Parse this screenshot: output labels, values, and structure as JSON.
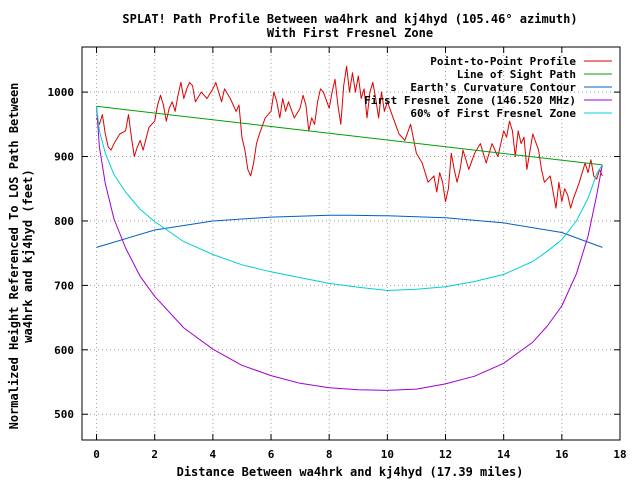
{
  "chart_data": {
    "type": "line",
    "title": "SPLAT! Path Profile Between wa4hrk and kj4hyd (105.46° azimuth)",
    "subtitle": "With First Fresnel Zone",
    "xlabel": "Distance Between wa4hrk and kj4hyd (17.39 miles)",
    "ylabel_line1": "Normalized Height Referenced To LOS Path Between",
    "ylabel_line2": "wa4hrk and kj4hyd (feet)",
    "xlim": [
      -0.5,
      18
    ],
    "ylim": [
      460,
      1070
    ],
    "xticks": [
      0,
      2,
      4,
      6,
      8,
      10,
      12,
      14,
      16,
      18
    ],
    "xtick_labels": [
      "0",
      "2",
      "4",
      "6",
      "8",
      "10",
      "12",
      "14",
      "16",
      "18"
    ],
    "yticks": [
      500,
      600,
      700,
      800,
      900,
      1000
    ],
    "ytick_labels": [
      "500",
      "600",
      "700",
      "800",
      "900",
      "1000"
    ],
    "grid": true,
    "legend_position": "top-right",
    "series": [
      {
        "name": "Point-to-Point Profile",
        "color": "#e00000",
        "x": [
          0,
          0.1,
          0.2,
          0.3,
          0.4,
          0.5,
          0.6,
          0.8,
          1.0,
          1.1,
          1.2,
          1.3,
          1.4,
          1.5,
          1.6,
          1.8,
          2.0,
          2.1,
          2.2,
          2.3,
          2.4,
          2.5,
          2.6,
          2.7,
          2.8,
          2.9,
          3.0,
          3.1,
          3.2,
          3.3,
          3.4,
          3.6,
          3.8,
          4.0,
          4.1,
          4.2,
          4.3,
          4.4,
          4.6,
          4.8,
          4.9,
          5.0,
          5.1,
          5.2,
          5.3,
          5.4,
          5.5,
          5.6,
          5.8,
          6.0,
          6.1,
          6.2,
          6.3,
          6.4,
          6.5,
          6.6,
          6.8,
          7.0,
          7.1,
          7.2,
          7.3,
          7.4,
          7.5,
          7.6,
          7.7,
          7.8,
          8.0,
          8.1,
          8.2,
          8.3,
          8.4,
          8.5,
          8.6,
          8.7,
          8.8,
          8.9,
          9.0,
          9.1,
          9.2,
          9.3,
          9.4,
          9.5,
          9.6,
          9.7,
          9.8,
          9.9,
          10.0,
          10.2,
          10.4,
          10.6,
          10.8,
          11.0,
          11.2,
          11.4,
          11.6,
          11.7,
          11.8,
          11.9,
          12.0,
          12.1,
          12.2,
          12.3,
          12.4,
          12.5,
          12.6,
          12.8,
          13.0,
          13.2,
          13.4,
          13.6,
          13.8,
          14.0,
          14.1,
          14.2,
          14.3,
          14.4,
          14.5,
          14.6,
          14.7,
          14.8,
          15.0,
          15.2,
          15.3,
          15.4,
          15.6,
          15.8,
          15.9,
          16.0,
          16.1,
          16.2,
          16.3,
          16.4,
          16.6,
          16.8,
          16.9,
          17.0,
          17.1,
          17.2,
          17.3,
          17.39
        ],
        "y": [
          960,
          950,
          965,
          935,
          915,
          910,
          920,
          935,
          940,
          965,
          930,
          900,
          915,
          925,
          910,
          945,
          955,
          980,
          995,
          980,
          955,
          975,
          985,
          970,
          995,
          1015,
          990,
          1005,
          1015,
          1010,
          985,
          1000,
          990,
          1005,
          1015,
          1000,
          985,
          1005,
          990,
          970,
          980,
          930,
          910,
          880,
          870,
          890,
          920,
          935,
          960,
          970,
          1000,
          985,
          960,
          990,
          970,
          985,
          960,
          975,
          995,
          980,
          940,
          960,
          950,
          985,
          1005,
          1000,
          975,
          1000,
          1020,
          980,
          950,
          1010,
          1040,
          1000,
          1030,
          1000,
          1025,
          990,
          1005,
          960,
          1000,
          1015,
          990,
          960,
          1000,
          970,
          985,
          960,
          935,
          925,
          950,
          905,
          890,
          860,
          870,
          845,
          875,
          860,
          830,
          850,
          905,
          880,
          860,
          880,
          910,
          880,
          905,
          920,
          890,
          920,
          900,
          940,
          930,
          955,
          940,
          900,
          940,
          920,
          930,
          880,
          935,
          910,
          880,
          860,
          870,
          820,
          860,
          830,
          850,
          840,
          820,
          835,
          860,
          890,
          875,
          895,
          870,
          865,
          880,
          870
        ]
      },
      {
        "name": "Line of Sight Path",
        "color": "#00a000",
        "x": [
          0,
          17.39
        ],
        "y": [
          978,
          887
        ]
      },
      {
        "name": "Earth's Curvature Contour",
        "color": "#0060c0",
        "type": "curvature",
        "x": [
          0,
          2,
          4,
          6,
          8,
          8.7,
          10,
          12,
          14,
          16,
          17.39
        ],
        "y": [
          759,
          786,
          800,
          806,
          809,
          809,
          808,
          805,
          797,
          782,
          759
        ]
      },
      {
        "name": "First Fresnel Zone (146.520 MHz)",
        "color": "#a000d0",
        "x": [
          0,
          0.1,
          0.3,
          0.6,
          1.0,
          1.5,
          2.0,
          3.0,
          4.0,
          5.0,
          6.0,
          7.0,
          8.0,
          9.0,
          10.0,
          11.0,
          12.0,
          13.0,
          14.0,
          15.0,
          15.5,
          16.0,
          16.5,
          16.9,
          17.2,
          17.39
        ],
        "y": [
          978,
          915,
          858,
          803,
          758,
          714,
          683,
          634,
          601,
          576,
          560,
          548,
          541,
          538,
          537,
          539,
          547,
          559,
          579,
          612,
          637,
          668,
          718,
          776,
          840,
          887
        ]
      },
      {
        "name": "60% of First Fresnel Zone",
        "color": "#00d0d0",
        "x": [
          0,
          0.1,
          0.3,
          0.6,
          1.0,
          1.5,
          2.0,
          3.0,
          4.0,
          5.0,
          6.0,
          7.0,
          8.0,
          9.0,
          10.0,
          11.0,
          12.0,
          13.0,
          14.0,
          15.0,
          15.5,
          16.0,
          16.5,
          16.9,
          17.2,
          17.39
        ],
        "y": [
          978,
          940,
          905,
          872,
          845,
          818,
          799,
          768,
          748,
          732,
          721,
          712,
          703,
          697,
          692,
          694,
          698,
          706,
          717,
          737,
          753,
          771,
          800,
          835,
          873,
          887
        ]
      }
    ]
  }
}
